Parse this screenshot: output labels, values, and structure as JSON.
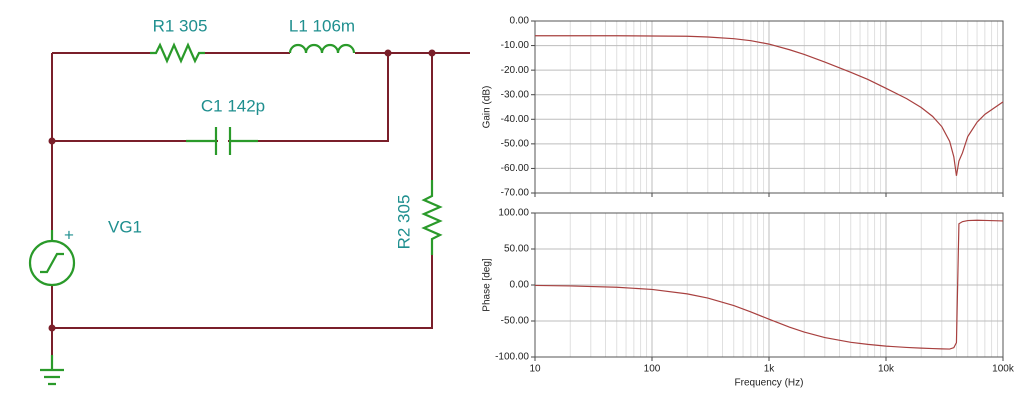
{
  "circuit": {
    "components": [
      {
        "label": "R1 305"
      },
      {
        "label": "L1 106m"
      },
      {
        "label": "C1 142p"
      },
      {
        "label": "R2 305"
      },
      {
        "label": "VG1"
      }
    ],
    "source_polarity": "+"
  },
  "chart_data": [
    {
      "type": "line",
      "ylabel": "Gain (dB)",
      "color": "#a8403f",
      "log_x": true,
      "grid": true,
      "show_xticklabels": false,
      "x": [
        10,
        20,
        50,
        100,
        200,
        300,
        500,
        700,
        1000,
        1500,
        2000,
        3000,
        5000,
        7000,
        10000,
        15000,
        20000,
        25000,
        30000,
        35000,
        38000,
        40000,
        42000,
        45000,
        50000,
        60000,
        70000,
        100000
      ],
      "values": [
        -6.0,
        -6.0,
        -6.0,
        -6.1,
        -6.2,
        -6.5,
        -7.2,
        -8.0,
        -9.4,
        -11.7,
        -13.6,
        -16.7,
        -20.9,
        -23.8,
        -27.4,
        -31.6,
        -35.2,
        -38.8,
        -43.0,
        -49.0,
        -55.3,
        -63.0,
        -57.0,
        -53.7,
        -47.0,
        -41.2,
        -38.0,
        -32.9
      ],
      "xlim": [
        10,
        100000
      ],
      "xticks": [
        10,
        100,
        {
          "value": 1000,
          "label": "1k"
        },
        {
          "value": 10000,
          "label": "10k"
        },
        {
          "value": 100000,
          "label": "100k"
        }
      ],
      "xminorticks": [
        20,
        30,
        40,
        50,
        60,
        70,
        80,
        90,
        200,
        300,
        400,
        500,
        600,
        700,
        800,
        900,
        2000,
        3000,
        4000,
        5000,
        6000,
        7000,
        8000,
        9000,
        20000,
        30000,
        40000,
        50000,
        60000,
        70000,
        80000,
        90000
      ],
      "ylim": [
        -70,
        0
      ],
      "yticks": [
        {
          "value": 0,
          "label": "0.00"
        },
        {
          "value": -10,
          "label": "-10.00"
        },
        {
          "value": -20,
          "label": "-20.00"
        },
        {
          "value": -30,
          "label": "-30.00"
        },
        {
          "value": -40,
          "label": "-40.00"
        },
        {
          "value": -50,
          "label": "-50.00"
        },
        {
          "value": -60,
          "label": "-60.00"
        },
        {
          "value": -70,
          "label": "-70.00"
        }
      ]
    },
    {
      "type": "line",
      "ylabel": "Phase [deg]",
      "xlabel": "Frequency (Hz)",
      "color": "#a8403f",
      "log_x": true,
      "grid": true,
      "show_xticklabels": true,
      "x": [
        10,
        20,
        50,
        100,
        200,
        300,
        500,
        700,
        1000,
        1500,
        2000,
        3000,
        5000,
        7000,
        10000,
        15000,
        20000,
        25000,
        30000,
        35000,
        38000,
        40000,
        42000,
        45000,
        50000,
        60000,
        70000,
        100000
      ],
      "values": [
        -0.6,
        -1.3,
        -3.1,
        -6.2,
        -12.3,
        -18.1,
        -28.6,
        -37.4,
        -47.5,
        -58.6,
        -65.4,
        -73.0,
        -79.6,
        -82.5,
        -84.9,
        -86.7,
        -87.7,
        -88.3,
        -88.7,
        -89.0,
        -87.0,
        -80.0,
        85.0,
        88.0,
        89.5,
        89.9,
        89.7,
        89.0
      ],
      "xlim": [
        10,
        100000
      ],
      "xticks": [
        10,
        100,
        {
          "value": 1000,
          "label": "1k"
        },
        {
          "value": 10000,
          "label": "10k"
        },
        {
          "value": 100000,
          "label": "100k"
        }
      ],
      "xminorticks": [
        20,
        30,
        40,
        50,
        60,
        70,
        80,
        90,
        200,
        300,
        400,
        500,
        600,
        700,
        800,
        900,
        2000,
        3000,
        4000,
        5000,
        6000,
        7000,
        8000,
        9000,
        20000,
        30000,
        40000,
        50000,
        60000,
        70000,
        80000,
        90000
      ],
      "ylim": [
        -100,
        100
      ],
      "yticks": [
        {
          "value": 100,
          "label": "100.00"
        },
        {
          "value": 50,
          "label": "50.00"
        },
        {
          "value": 0,
          "label": "0.00"
        },
        {
          "value": -50,
          "label": "-50.00"
        },
        {
          "value": -100,
          "label": "-100.00"
        }
      ]
    }
  ]
}
